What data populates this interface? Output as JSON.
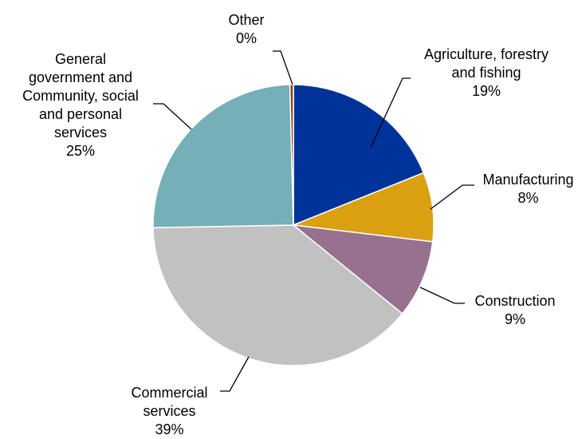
{
  "chart_data": {
    "type": "pie",
    "slices": [
      {
        "name": "Agriculture, forestry and fishing",
        "label_lines": [
          "Agriculture, forestry",
          "and fishing"
        ],
        "value": 19,
        "value_label": "19%",
        "color": "#003399"
      },
      {
        "name": "Manufacturing",
        "label_lines": [
          "Manufacturing"
        ],
        "value": 8,
        "value_label": "8%",
        "color": "#D9A012"
      },
      {
        "name": "Construction",
        "label_lines": [
          "Construction"
        ],
        "value": 9,
        "value_label": "9%",
        "color": "#98718F"
      },
      {
        "name": "Commercial services",
        "label_lines": [
          "Commercial",
          "services"
        ],
        "value": 39,
        "value_label": "39%",
        "color": "#C1C1C1"
      },
      {
        "name": "General government and Community, social and personal services",
        "label_lines": [
          "General",
          "government and",
          "Community, social",
          "and personal",
          "services"
        ],
        "value": 25,
        "value_label": "25%",
        "color": "#75AFB8"
      },
      {
        "name": "Other",
        "label_lines": [
          "Other"
        ],
        "value": 0.4,
        "value_label": "0%",
        "color": "#8B4513"
      }
    ]
  }
}
